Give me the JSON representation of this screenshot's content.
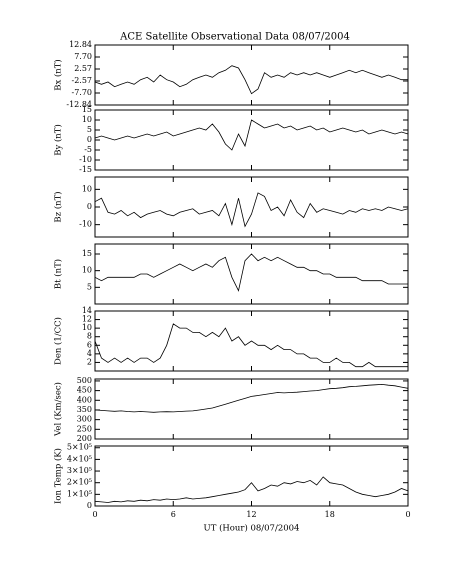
{
  "chart_data": [
    {
      "type": "line",
      "title": "ACE Satellite Observational Data   08/07/2004",
      "y_label": "Bx (nT)",
      "color": "#000000",
      "x": [
        0,
        0.5,
        1,
        1.5,
        2,
        2.5,
        3,
        3.5,
        4,
        4.5,
        5,
        5.5,
        6,
        6.5,
        7,
        7.5,
        8,
        8.5,
        9,
        9.5,
        10,
        10.5,
        11,
        11.5,
        12,
        12.5,
        13,
        13.5,
        14,
        14.5,
        15,
        15.5,
        16,
        16.5,
        17,
        17.5,
        18,
        18.5,
        19,
        19.5,
        20,
        20.5,
        21,
        21.5,
        22,
        22.5,
        23,
        23.5,
        24
      ],
      "values": [
        -3,
        -4,
        -3,
        -5,
        -4,
        -3,
        -4,
        -2,
        -1,
        -3,
        0,
        -2,
        -3,
        -5,
        -4,
        -2,
        -1,
        0,
        -1,
        1,
        2,
        4,
        3,
        -2,
        -8,
        -6,
        1,
        -1,
        0,
        -1,
        1,
        0,
        1,
        0,
        1,
        0,
        -1,
        0,
        1,
        2,
        1,
        2,
        1,
        0,
        -1,
        0,
        -1,
        -2,
        -2
      ],
      "xlim": [
        0,
        24
      ],
      "ylim": [
        -12.84,
        12.84
      ],
      "yticks": [
        12.84,
        {
          "value": 7.7,
          "label": "7.70"
        },
        2.57,
        -2.57,
        {
          "value": -7.7,
          "label": "-7.70"
        },
        -12.84
      ]
    },
    {
      "type": "line",
      "y_label": "By (nT)",
      "color": "#000000",
      "x": [
        0,
        0.5,
        1,
        1.5,
        2,
        2.5,
        3,
        3.5,
        4,
        4.5,
        5,
        5.5,
        6,
        6.5,
        7,
        7.5,
        8,
        8.5,
        9,
        9.5,
        10,
        10.5,
        11,
        11.5,
        12,
        12.5,
        13,
        13.5,
        14,
        14.5,
        15,
        15.5,
        16,
        16.5,
        17,
        17.5,
        18,
        18.5,
        19,
        19.5,
        20,
        20.5,
        21,
        21.5,
        22,
        22.5,
        23,
        23.5,
        24
      ],
      "values": [
        1,
        2,
        1,
        0,
        1,
        2,
        1,
        2,
        3,
        2,
        3,
        4,
        2,
        3,
        4,
        5,
        6,
        5,
        8,
        4,
        -2,
        -5,
        3,
        -3,
        10,
        8,
        6,
        7,
        8,
        6,
        7,
        5,
        6,
        7,
        5,
        6,
        4,
        5,
        6,
        5,
        4,
        5,
        3,
        4,
        5,
        4,
        3,
        4,
        3
      ],
      "xlim": [
        0,
        24
      ],
      "ylim": [
        -15,
        15
      ],
      "yticks": [
        15,
        10,
        5,
        0,
        -5,
        -10,
        -15
      ]
    },
    {
      "type": "line",
      "y_label": "Bz (nT)",
      "color": "#000000",
      "x": [
        0,
        0.5,
        1,
        1.5,
        2,
        2.5,
        3,
        3.5,
        4,
        4.5,
        5,
        5.5,
        6,
        6.5,
        7,
        7.5,
        8,
        8.5,
        9,
        9.5,
        10,
        10.5,
        11,
        11.5,
        12,
        12.5,
        13,
        13.5,
        14,
        14.5,
        15,
        15.5,
        16,
        16.5,
        17,
        17.5,
        18,
        18.5,
        19,
        19.5,
        20,
        20.5,
        21,
        21.5,
        22,
        22.5,
        23,
        23.5,
        24
      ],
      "values": [
        3,
        5,
        -3,
        -4,
        -2,
        -5,
        -3,
        -6,
        -4,
        -3,
        -2,
        -4,
        -5,
        -3,
        -2,
        -1,
        -4,
        -3,
        -2,
        -5,
        2,
        -10,
        5,
        -11,
        -4,
        8,
        6,
        -2,
        0,
        -5,
        4,
        -3,
        -6,
        2,
        -3,
        -1,
        -2,
        -3,
        -4,
        -2,
        -3,
        -1,
        -2,
        -1,
        -2,
        0,
        -1,
        -2,
        -1
      ],
      "xlim": [
        0,
        24
      ],
      "ylim": [
        -17,
        17
      ],
      "yticks": [
        10,
        0,
        -10
      ]
    },
    {
      "type": "line",
      "y_label": "Bt (nT)",
      "color": "#000000",
      "x": [
        0,
        0.5,
        1,
        1.5,
        2,
        2.5,
        3,
        3.5,
        4,
        4.5,
        5,
        5.5,
        6,
        6.5,
        7,
        7.5,
        8,
        8.5,
        9,
        9.5,
        10,
        10.5,
        11,
        11.5,
        12,
        12.5,
        13,
        13.5,
        14,
        14.5,
        15,
        15.5,
        16,
        16.5,
        17,
        17.5,
        18,
        18.5,
        19,
        19.5,
        20,
        20.5,
        21,
        21.5,
        22,
        22.5,
        23,
        23.5,
        24
      ],
      "values": [
        8,
        7,
        8,
        8,
        8,
        8,
        8,
        9,
        9,
        8,
        9,
        10,
        11,
        12,
        11,
        10,
        11,
        12,
        11,
        13,
        14,
        8,
        4,
        13,
        15,
        13,
        14,
        13,
        14,
        13,
        12,
        11,
        11,
        10,
        10,
        9,
        9,
        8,
        8,
        8,
        8,
        7,
        7,
        7,
        7,
        6,
        6,
        6,
        6
      ],
      "xlim": [
        0,
        24
      ],
      "ylim": [
        0,
        18
      ],
      "yticks": [
        5,
        10,
        15
      ]
    },
    {
      "type": "line",
      "y_label": "Den (1/CC)",
      "color": "#000000",
      "x": [
        0,
        0.5,
        1,
        1.5,
        2,
        2.5,
        3,
        3.5,
        4,
        4.5,
        5,
        5.5,
        6,
        6.5,
        7,
        7.5,
        8,
        8.5,
        9,
        9.5,
        10,
        10.5,
        11,
        11.5,
        12,
        12.5,
        13,
        13.5,
        14,
        14.5,
        15,
        15.5,
        16,
        16.5,
        17,
        17.5,
        18,
        18.5,
        19,
        19.5,
        20,
        20.5,
        21,
        21.5,
        22,
        22.5,
        23,
        23.5,
        24
      ],
      "values": [
        7,
        3,
        2,
        3,
        2,
        3,
        2,
        3,
        3,
        2,
        3,
        6,
        11,
        10,
        10,
        9,
        9,
        8,
        9,
        8,
        10,
        7,
        8,
        6,
        7,
        6,
        6,
        5,
        6,
        5,
        5,
        4,
        4,
        3,
        3,
        2,
        2,
        3,
        2,
        2,
        1,
        1,
        2,
        1,
        1,
        1,
        1,
        1,
        1
      ],
      "xlim": [
        0,
        24
      ],
      "ylim": [
        0,
        14
      ],
      "yticks": [
        2,
        4,
        6,
        8,
        10,
        12,
        14
      ]
    },
    {
      "type": "line",
      "y_label": "Vel (Km/sec)",
      "color": "#000000",
      "x": [
        0,
        0.5,
        1,
        1.5,
        2,
        2.5,
        3,
        3.5,
        4,
        4.5,
        5,
        5.5,
        6,
        6.5,
        7,
        7.5,
        8,
        8.5,
        9,
        9.5,
        10,
        10.5,
        11,
        11.5,
        12,
        12.5,
        13,
        13.5,
        14,
        14.5,
        15,
        15.5,
        16,
        16.5,
        17,
        17.5,
        18,
        18.5,
        19,
        19.5,
        20,
        20.5,
        21,
        21.5,
        22,
        22.5,
        23,
        23.5,
        24
      ],
      "values": [
        350,
        348,
        345,
        343,
        345,
        342,
        340,
        342,
        340,
        338,
        340,
        341,
        340,
        342,
        344,
        345,
        350,
        355,
        360,
        370,
        380,
        390,
        400,
        410,
        420,
        425,
        430,
        435,
        440,
        438,
        440,
        442,
        445,
        448,
        450,
        455,
        460,
        462,
        465,
        470,
        472,
        475,
        478,
        480,
        482,
        478,
        475,
        468,
        462
      ],
      "xlim": [
        0,
        24
      ],
      "ylim": [
        200,
        510
      ],
      "yticks": [
        200,
        250,
        300,
        350,
        400,
        450,
        500
      ]
    },
    {
      "type": "line",
      "y_label": "Ion Temp (K)",
      "x_label": "UT (Hour)  08/07/2004",
      "color": "#000000",
      "x": [
        0,
        0.5,
        1,
        1.5,
        2,
        2.5,
        3,
        3.5,
        4,
        4.5,
        5,
        5.5,
        6,
        6.5,
        7,
        7.5,
        8,
        8.5,
        9,
        9.5,
        10,
        10.5,
        11,
        11.5,
        12,
        12.5,
        13,
        13.5,
        14,
        14.5,
        15,
        15.5,
        16,
        16.5,
        17,
        17.5,
        18,
        18.5,
        19,
        19.5,
        20,
        20.5,
        21,
        21.5,
        22,
        22.5,
        23,
        23.5,
        24
      ],
      "values": [
        40000,
        35000,
        30000,
        40000,
        35000,
        45000,
        40000,
        50000,
        45000,
        55000,
        50000,
        60000,
        55000,
        60000,
        70000,
        60000,
        65000,
        70000,
        80000,
        90000,
        100000,
        110000,
        120000,
        140000,
        200000,
        130000,
        150000,
        180000,
        170000,
        200000,
        190000,
        210000,
        200000,
        220000,
        180000,
        250000,
        200000,
        190000,
        180000,
        150000,
        120000,
        100000,
        90000,
        80000,
        90000,
        100000,
        120000,
        150000,
        130000
      ],
      "xlim": [
        0,
        24
      ],
      "ylim": [
        0,
        515000
      ],
      "yticks": [
        0,
        {
          "value": 100000,
          "label": "1×10⁵"
        },
        {
          "value": 200000,
          "label": "2×10⁵"
        },
        {
          "value": 300000,
          "label": "3×10⁵"
        },
        {
          "value": 400000,
          "label": "4×10⁵"
        },
        {
          "value": 500000,
          "label": "5×10⁵"
        }
      ],
      "xticks": [
        0,
        6,
        12,
        18,
        {
          "value": 24,
          "label": "0"
        }
      ]
    }
  ]
}
